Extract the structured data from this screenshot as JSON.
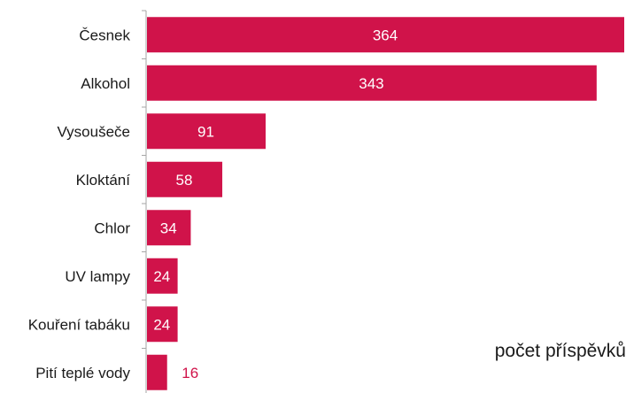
{
  "chart_data": {
    "type": "bar",
    "orientation": "horizontal",
    "title": "",
    "xlabel": "počet příspěvků",
    "ylabel": "",
    "categories": [
      "Česnek",
      "Alkohol",
      "Vysoušeče",
      "Kloktání",
      "Chlor",
      "UV lampy",
      "Kouření tabáku",
      "Pití teplé vody"
    ],
    "values": [
      364,
      343,
      91,
      58,
      34,
      24,
      24,
      16
    ],
    "data_labels": [
      "364",
      "343",
      "91",
      "58",
      "34",
      "24",
      "24",
      "16"
    ],
    "xlim": [
      0,
      364
    ],
    "grid": false,
    "legend": "none",
    "colors": {
      "bar": "#D0134A",
      "label_inside": "#ffffff",
      "label_outside": "#D0134A",
      "axis": "#a6a6a6",
      "text": "#1a1a1a"
    }
  }
}
